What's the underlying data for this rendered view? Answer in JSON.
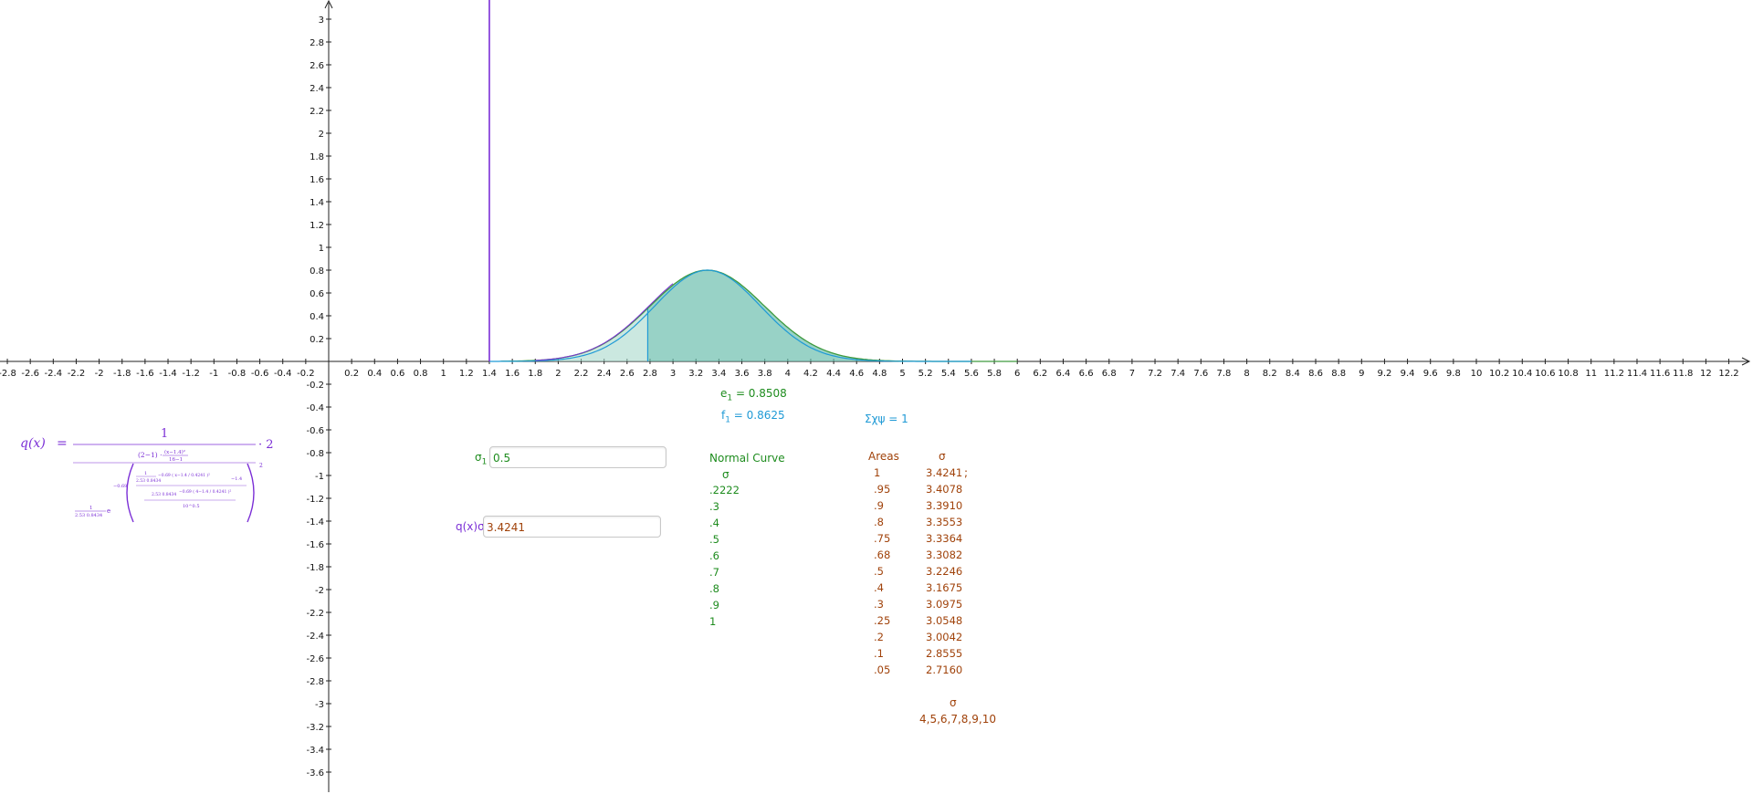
{
  "colors": {
    "axis": "#222222",
    "grid_text": "#111111",
    "fill_dark": "#6cbfae",
    "fill_light": "#a9d8cc",
    "curve_green": "#3e9a3e",
    "curve_blue": "#1f9ad6",
    "curve_purple": "#7b2fd6",
    "green_text": "#1e8c1e",
    "blue_text": "#1f9ad6",
    "brown_text": "#a0420a"
  },
  "axes": {
    "x_ticks": [
      "-2.8",
      "-2.6",
      "-2.4",
      "-2.2",
      "-2",
      "-1.8",
      "-1.6",
      "-1.4",
      "-1.2",
      "-1",
      "-0.8",
      "-0.6",
      "-0.4",
      "-0.2",
      "0.2",
      "0.4",
      "0.6",
      "0.8",
      "1",
      "1.2",
      "1.4",
      "1.6",
      "1.8",
      "2",
      "2.2",
      "2.4",
      "2.6",
      "2.8",
      "3",
      "3.2",
      "3.4",
      "3.6",
      "3.8",
      "4",
      "4.2",
      "4.4",
      "4.6",
      "4.8",
      "5",
      "5.2",
      "5.4",
      "5.6",
      "5.8",
      "6",
      "6.2",
      "6.4",
      "6.6",
      "6.8",
      "7",
      "7.2",
      "7.4",
      "7.6",
      "7.8",
      "8",
      "8.2",
      "8.4",
      "8.6",
      "8.8",
      "9",
      "9.2",
      "9.4",
      "9.6",
      "9.8",
      "10",
      "10.2",
      "10.4",
      "10.6",
      "10.8",
      "11",
      "11.2",
      "11.4",
      "11.6",
      "11.8",
      "12",
      "12.2"
    ],
    "y_ticks": [
      "3",
      "2.8",
      "2.6",
      "2.4",
      "2.2",
      "2",
      "1.8",
      "1.6",
      "1.4",
      "1.2",
      "1",
      "0.8",
      "0.6",
      "0.4",
      "0.2",
      "-0.2",
      "-0.4",
      "-0.6",
      "-0.8",
      "-1",
      "-1.2",
      "-1.4",
      "-1.6",
      "-1.8",
      "-2",
      "-2.2",
      "-2.4",
      "-2.6",
      "-2.8",
      "-3",
      "-3.2",
      "-3.4",
      "-3.6"
    ]
  },
  "curve": {
    "mean": 3.2985,
    "peak": 0.8,
    "shade_from": 2.78,
    "shade_to": 4.9,
    "vertical_line_x": 1.4
  },
  "labels": {
    "e1_name": "e",
    "e1_sub": "1",
    "e1_value": " = 0.8508",
    "f1_name": "f",
    "f1_sub": "1",
    "f1_value": " = 0.8625",
    "sum": "Σχψ = 1"
  },
  "inputs": {
    "sigma1_label_main": "σ",
    "sigma1_label_sub": "1",
    "sigma1_value": "0.5",
    "qx_label": "q(x)σ",
    "qx_value": "3.4241"
  },
  "formula": {
    "lhs": "q(x)",
    "equals": "=",
    "numerator": "1",
    "times_two": "· 2",
    "outer_power": "2",
    "inner_top": "(2−1) · ",
    "inner_top_frac": "(x−1.4)²",
    "inner_top_den": "16−1",
    "coef": "1",
    "coef_den": "2.53 0.8434",
    "e": "e",
    "exp1": "−0.69",
    "exp2": "1",
    "exp3": "2.53 0.8434",
    "term_a": "−0.69 ( x−1.4 / 0.4241 )²",
    "term_b": "−1.4",
    "term_c": "2.53 0.8434",
    "term_d": "−0.69 ( 4−1.4 / 0.4241 )²",
    "den_bottom": "10^0.5"
  },
  "normal_curve": {
    "title": "Normal Curve",
    "header": "σ",
    "values": [
      ".2222",
      ".3",
      ".4",
      ".5",
      ".6",
      ".7",
      ".8",
      ".9",
      "1"
    ]
  },
  "areas_table": {
    "header_areas": "Areas",
    "header_sigma": "σ",
    "areas": [
      "1",
      ".95",
      ".9",
      ".8",
      ".75",
      ".68",
      ".5",
      ".4",
      ".3",
      ".25",
      ".2",
      ".1",
      ".05"
    ],
    "sigmas": [
      "3.4241",
      "3.4078",
      "3.3910",
      "3.3553",
      "3.3364",
      "3.3082",
      "3.2246",
      "3.1675",
      "3.0975",
      "3.0548",
      "3.0042",
      "2.8555",
      "2.7160"
    ],
    "semicolon": ";",
    "footer_sigma": "σ",
    "footer_values": "4,5,6,7,8,9,10"
  }
}
